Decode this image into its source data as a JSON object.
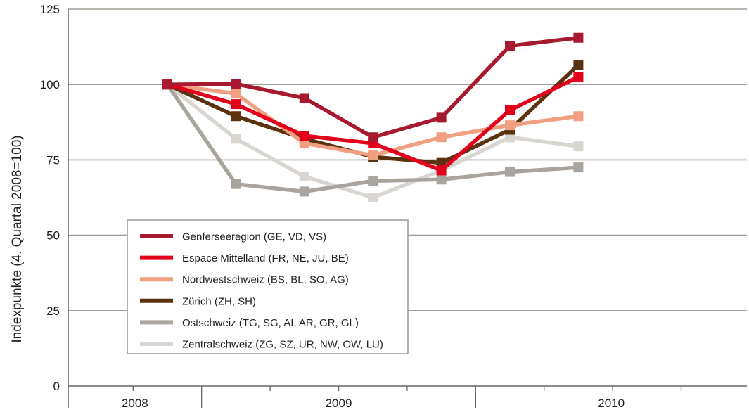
{
  "chart_data": {
    "type": "line",
    "ylabel": "Indexpunkte (4. Quartal 2008=100)",
    "xlabel": "",
    "ylim": [
      0,
      125
    ],
    "yticks": [
      0,
      25,
      50,
      75,
      100,
      125
    ],
    "x": [
      "2008 Q4",
      "2009 Q1",
      "2009 Q2",
      "2009 Q3",
      "2009 Q4",
      "2010 Q1",
      "2010 Q2"
    ],
    "year_labels": [
      {
        "label": "2008",
        "from": 0,
        "to": 0
      },
      {
        "label": "2009",
        "from": 1,
        "to": 4
      },
      {
        "label": "2010",
        "from": 5,
        "to": 8
      }
    ],
    "grid": true,
    "legend_position": "bottom-left",
    "series": [
      {
        "name": "Genferseeregion (GE, VD, VS)",
        "color": "#a6192e",
        "values": [
          100,
          100.2,
          95.5,
          82.5,
          89,
          112.8,
          115.5
        ]
      },
      {
        "name": "Espace Mittelland (FR, NE, JU, BE)",
        "color": "#e3001b",
        "values": [
          100,
          93.5,
          83,
          80.5,
          71.5,
          91.5,
          102.5
        ]
      },
      {
        "name": "Nordwestschweiz (BS, BL, SO, AG)",
        "color": "#f0a080",
        "values": [
          100,
          97,
          80.5,
          76.5,
          82.5,
          86.5,
          89.5
        ]
      },
      {
        "name": "Zürich (ZH, SH)",
        "color": "#5a3210",
        "values": [
          100,
          89.5,
          82,
          76,
          74,
          85,
          106.5
        ]
      },
      {
        "name": "Ostschweiz (TG, SG, AI, AR, GR, GL)",
        "color": "#aaa49e",
        "values": [
          100,
          67,
          64.5,
          68,
          68.5,
          71,
          72.5
        ]
      },
      {
        "name": "Zentralschweiz (ZG, SZ, UR, NW, OW, LU)",
        "color": "#d9d6d2",
        "values": [
          100,
          82,
          69.5,
          62.5,
          71.5,
          82.5,
          79.5
        ]
      }
    ]
  }
}
